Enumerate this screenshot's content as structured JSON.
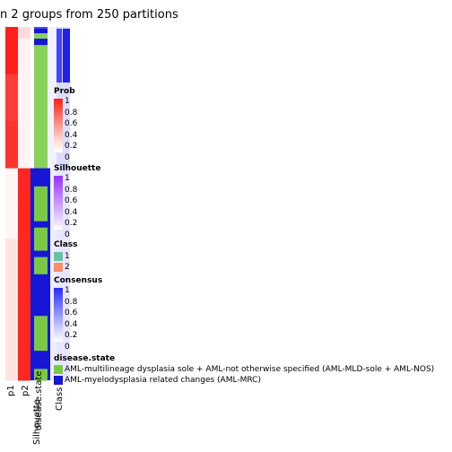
{
  "title": "n 2 groups from 250 partitions",
  "chart_data": {
    "type": "heatmap",
    "columns": [
      "p1",
      "p2",
      "Class",
      "Silhouette",
      "disease.state",
      "Prob",
      "Consensus",
      "Class"
    ],
    "column_labels": [
      "p1",
      "p2",
      "Silhouette",
      "disease.state",
      "Class"
    ],
    "n_rows": 60,
    "row_groups": [
      {
        "class": 1,
        "rows": 24,
        "p1": 0.95,
        "p2": 0.05
      },
      {
        "class": 2,
        "rows": 36,
        "p1": 0.12,
        "p2": 0.92
      }
    ],
    "disease_state_pattern": "green mostly, blue in spots for class 1; blue-heavy with green blocks for class 2",
    "legends": [
      {
        "title": "Prob",
        "ticks": [
          "1",
          "0.8",
          "0.6",
          "0.4",
          "0.2",
          "0"
        ],
        "low_color": "#ffffff",
        "high_color": "#ff0000"
      },
      {
        "title": "Silhouette",
        "ticks": [
          "1",
          "0.8",
          "0.6",
          "0.4",
          "0.2",
          "0"
        ],
        "low_color": "#ffffff",
        "high_color": "#8a2be2"
      },
      {
        "title": "Class",
        "entries": [
          {
            "label": "1",
            "color": "#66c2a5"
          },
          {
            "label": "2",
            "color": "#fc8d62"
          }
        ]
      },
      {
        "title": "Consensus",
        "ticks": [
          "1",
          "0.8",
          "0.6",
          "0.4",
          "0.2",
          "0"
        ],
        "low_color": "#ffffff",
        "high_color": "#0000ff"
      },
      {
        "title": "disease.state",
        "entries": [
          {
            "label": "AML-multilineage dysplasia sole + AML-not otherwise specified (AML-MLD-sole + AML-NOS)",
            "color": "#7ac943"
          },
          {
            "label": "AML-myelodysplasia related changes (AML-MRC)",
            "color": "#1616d6"
          }
        ]
      }
    ]
  }
}
